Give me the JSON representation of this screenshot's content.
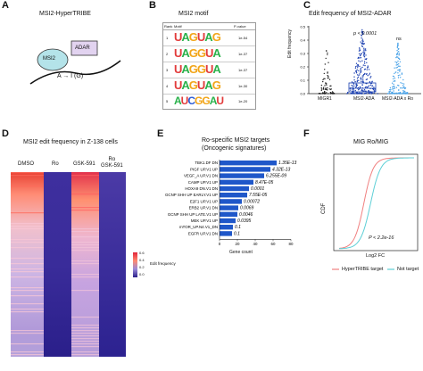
{
  "panels": {
    "A": {
      "label": "A",
      "title": "MSI2-HyperTRIBE",
      "msi2": "MSI2",
      "adar": "ADAR",
      "edit": "A → I (G)"
    },
    "B": {
      "label": "B",
      "title": "MSI2 motif",
      "headers": [
        "Rank",
        "Motif",
        "P-value"
      ],
      "rows": [
        {
          "rank": "1",
          "motif": "UAGUAG",
          "pvalue": "1e-54"
        },
        {
          "rank": "2",
          "motif": "UAGGUA",
          "pvalue": "1e-37"
        },
        {
          "rank": "3",
          "motif": "UAGGUA",
          "pvalue": "1e-37"
        },
        {
          "rank": "4",
          "motif": "UAGUAG",
          "pvalue": "1e-30"
        },
        {
          "rank": "5",
          "motif": "AUCGGAU",
          "pvalue": "1e-20"
        }
      ]
    },
    "C": {
      "label": "C",
      "title": "Edit frequency of MSI2-ADAR",
      "ylabel": "Edit frequency",
      "pval": "p < 0.0001",
      "ns": "ns",
      "groups": [
        "MIGR1",
        "MSI2-ADA",
        "MSI2-ADA x Ro"
      ],
      "yticks": [
        "0.5",
        "0.4",
        "0.3",
        "0.2",
        "0.1",
        "0.0"
      ]
    },
    "D": {
      "label": "D",
      "title": "MSI2 edit frequency in Z-138 cells",
      "columns": [
        "DMSO",
        "Ro",
        "GSK-591",
        "Ro\nGSK-591"
      ],
      "legend_title": "Edit frequency",
      "legend_ticks": [
        "0.6",
        "0.4",
        "0.2",
        "0.0"
      ]
    },
    "E": {
      "label": "E",
      "title1": "Ro-specific MSI2 targets",
      "title2": "(Oncogenic signatures)",
      "xlabel": "Gene count",
      "xticks": [
        "0",
        "20",
        "40",
        "60",
        "80"
      ],
      "color": "#1f57c9"
    },
    "F": {
      "label": "F",
      "title": "MIG Ro/MIG",
      "ylabel": "CDF",
      "xlabel": "Log2 FC",
      "pval": "P < 2.2e-16",
      "legend": [
        "HyperTRIBE target",
        "Not target"
      ],
      "colors": {
        "target": "#f08080",
        "not_target": "#5ecfd6"
      }
    }
  },
  "chart_data": [
    {
      "type": "bar",
      "title": "Ro-specific MSI2 targets (Oncogenic signatures)",
      "xlabel": "Gene count",
      "xlim": [
        0,
        80
      ],
      "categories": [
        "TBK1.DF DN",
        "PIGF UP.V1 UP",
        "VEGF_A UP.V1 DN",
        "CAMP UP.V1 UP",
        "HOXA9 DN.V1 DN",
        "GCNP SHH UP EARLY.V1 UP",
        "E2F1 UP.V1 UP",
        "ERB2 UP.V1 DN",
        "GCNP SHH UP LATE.V1 UP",
        "MEK UP.V1 UP",
        "mTOR_UP.N4.V1_DN",
        "EGFR UP.V1 DN"
      ],
      "values": [
        64,
        57,
        50,
        38,
        33,
        31,
        25,
        21,
        20,
        18,
        15,
        14
      ],
      "pvalues": [
        "1.35E-13",
        "4.32E-13",
        "6.255E-09",
        "8.47E-05",
        "0.0001",
        "7.55E-05",
        "0.00072",
        "0.0069",
        "0.0046",
        "0.0395",
        "0.1",
        "0.1"
      ]
    },
    {
      "type": "line",
      "title": "MIG Ro/MIG",
      "xlabel": "Log2 FC",
      "ylabel": "CDF",
      "ylim": [
        0,
        1
      ],
      "series": [
        {
          "name": "HyperTRIBE target"
        },
        {
          "name": "Not target"
        }
      ]
    }
  ]
}
